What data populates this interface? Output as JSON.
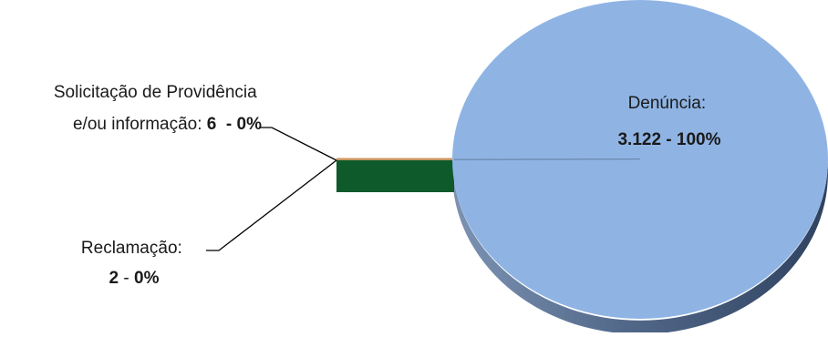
{
  "chart_data": {
    "type": "pie",
    "title": "",
    "slices": [
      {
        "label_lines": [
          "Denúncia:"
        ],
        "value_text": "3.122",
        "sep": " - ",
        "pct_text": "100%",
        "value": 3122,
        "color": "#8fb4e4"
      },
      {
        "label_lines": [
          "Solicitação de Providência",
          "e/ou informação: "
        ],
        "value_text": "6",
        "sep": "  - ",
        "pct_text": "0%",
        "value": 6,
        "color": "#c89560"
      },
      {
        "label_lines": [
          "Reclamação:"
        ],
        "value_text": "2",
        "sep": " - ",
        "pct_text": "0%",
        "value": 2,
        "color": "#0e5a2a"
      }
    ]
  }
}
